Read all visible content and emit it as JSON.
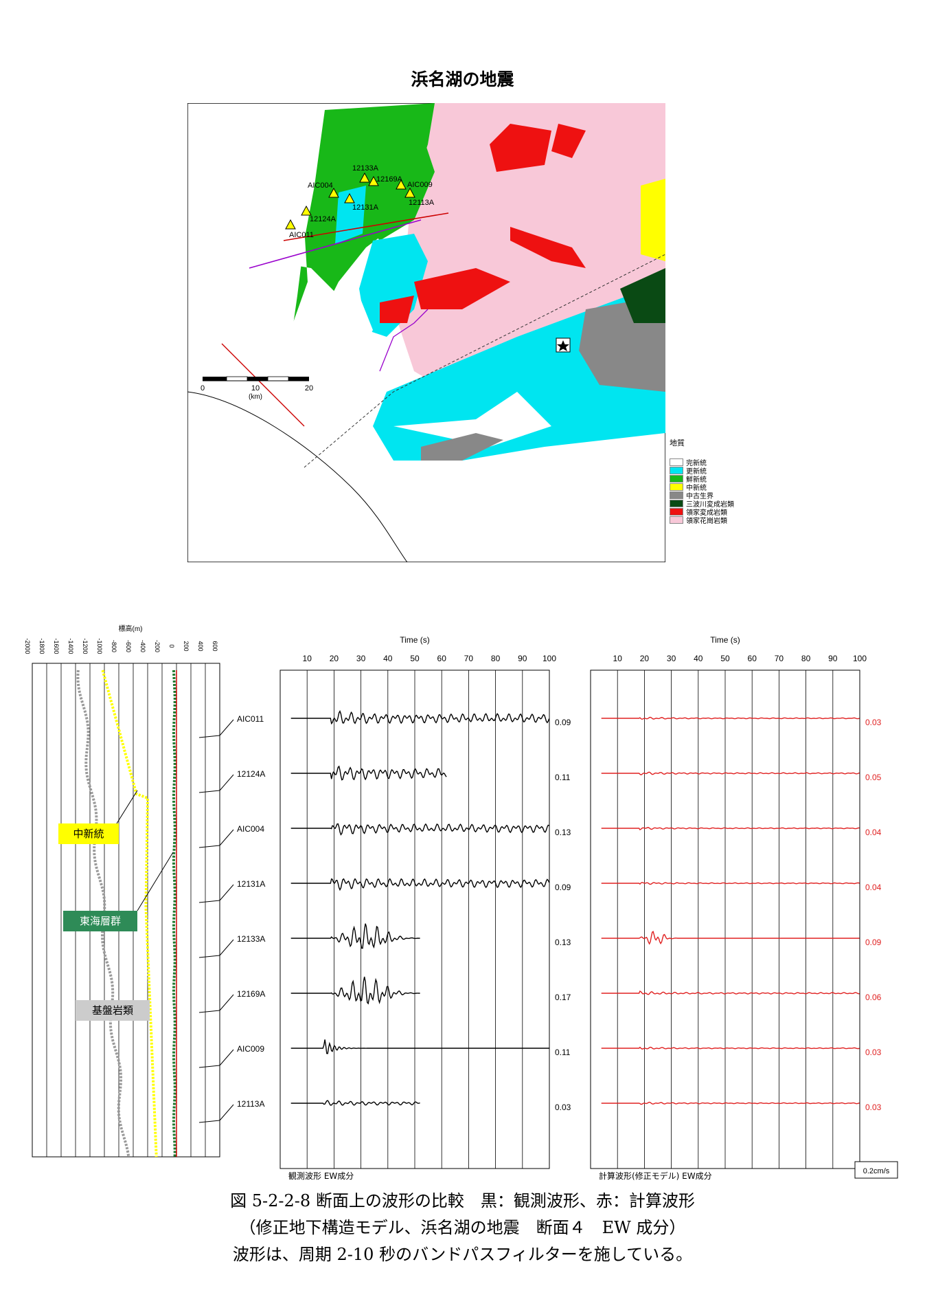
{
  "map": {
    "title": "浜名湖の地震",
    "stations": [
      {
        "name": "AIC011"
      },
      {
        "name": "12124A"
      },
      {
        "name": "AIC004"
      },
      {
        "name": "12131A"
      },
      {
        "name": "12133A"
      },
      {
        "name": "12169A"
      },
      {
        "name": "AIC009"
      },
      {
        "name": "12113A"
      }
    ],
    "scalebar": {
      "ticks": [
        "0",
        "10",
        "20"
      ],
      "unit": "(km)"
    },
    "legend": {
      "title": "地質",
      "items": [
        {
          "label": "完新統",
          "color": "#ffffff"
        },
        {
          "label": "更新統",
          "color": "#00e5f0"
        },
        {
          "label": "鮮新統",
          "color": "#18b818"
        },
        {
          "label": "中新統",
          "color": "#ffff00"
        },
        {
          "label": "中古生界",
          "color": "#888888"
        },
        {
          "label": "三波川変成岩類",
          "color": "#0a4a14"
        },
        {
          "label": "領家変成岩類",
          "color": "#ee1111"
        },
        {
          "label": "領家花崗岩類",
          "color": "#f8c8d8"
        }
      ]
    }
  },
  "profile": {
    "ylabel": "標高(m)",
    "ticks": [
      "-2000",
      "-1800",
      "-1600",
      "-1400",
      "-1200",
      "-1000",
      "-800",
      "-600",
      "-400",
      "-200",
      "0",
      "200",
      "400",
      "600"
    ],
    "labels": [
      {
        "text": "中新統",
        "color": "#ffff00",
        "textColor": "#000000"
      },
      {
        "text": "東海層群",
        "color": "#2e8b57",
        "textColor": "#ffffff"
      },
      {
        "text": "基盤岩類",
        "color": "#cccccc",
        "textColor": "#000000"
      }
    ]
  },
  "waveforms": {
    "time_label": "Time (s)",
    "time_ticks": [
      "10",
      "20",
      "30",
      "40",
      "50",
      "60",
      "70",
      "80",
      "90",
      "100"
    ],
    "observed_label": "観測波形 EW成分",
    "computed_label": "計算波形(修正モデル) EW成分",
    "scale_label": "0.2cm/s",
    "stations": [
      {
        "name": "AIC011",
        "obs_amp": "0.09",
        "calc_amp": "0.03"
      },
      {
        "name": "12124A",
        "obs_amp": "0.11",
        "calc_amp": "0.05"
      },
      {
        "name": "AIC004",
        "obs_amp": "0.13",
        "calc_amp": "0.04"
      },
      {
        "name": "12131A",
        "obs_amp": "0.09",
        "calc_amp": "0.04"
      },
      {
        "name": "12133A",
        "obs_amp": "0.13",
        "calc_amp": "0.09"
      },
      {
        "name": "12169A",
        "obs_amp": "0.17",
        "calc_amp": "0.06"
      },
      {
        "name": "AIC009",
        "obs_amp": "0.11",
        "calc_amp": "0.03"
      },
      {
        "name": "12113A",
        "obs_amp": "0.03",
        "calc_amp": "0.03"
      }
    ]
  },
  "caption": {
    "line1": "図 5-2-2-8 断面上の波形の比較　黒：観測波形、赤：計算波形",
    "line2": "（修正地下構造モデル、浜名湖の地震　断面４　EW 成分）",
    "line3": "波形は、周期 2-10 秒のバンドパスフィルターを施している。"
  },
  "colors": {
    "observed": "#000000",
    "computed": "#e02020",
    "pink": "#f8c8d8",
    "green": "#18b818",
    "cyan": "#00e5f0",
    "red": "#ee1111",
    "yellow": "#ffff00",
    "gray": "#888888",
    "darkgreen": "#0a4a14"
  }
}
